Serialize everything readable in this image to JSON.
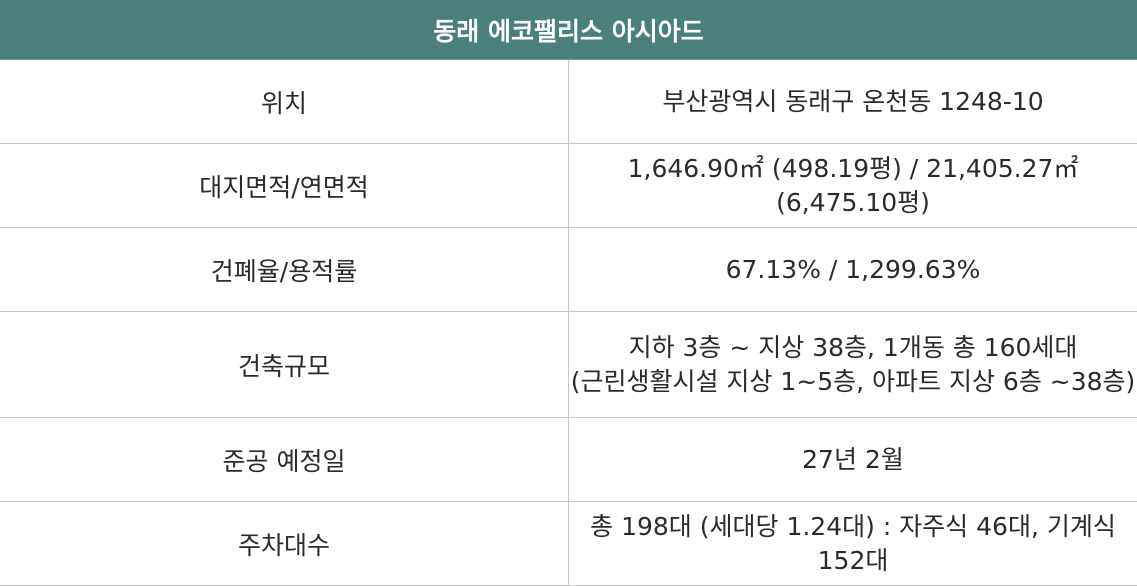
{
  "title": "동래 에코팰리스 아시아드",
  "rows": [
    {
      "label": "위치",
      "value": [
        "부산광역시 동래구 온천동 1248-10"
      ]
    },
    {
      "label": "대지면적/연면적",
      "value": [
        "1,646.90㎡ (498.19평) / 21,405.27㎡(6,475.10평)"
      ]
    },
    {
      "label": "건폐율/용적률",
      "value": [
        "67.13% / 1,299.63%"
      ]
    },
    {
      "label": "건축규모",
      "value": [
        "지하 3층 ~ 지상 38층, 1개동 총 160세대",
        "(근린생활시설 지상 1~5층, 아파트 지상 6층 ~38층)"
      ]
    },
    {
      "label": "준공 예정일",
      "value": [
        "27년 2월"
      ]
    },
    {
      "label": "주차대수",
      "value": [
        "총 198대 (세대당 1.24대) : 자주식 46대, 기계식 152대"
      ]
    }
  ],
  "colors": {
    "header_background": "#4a7f7b",
    "header_text": "#ffffff",
    "border": "#c7c7c7"
  }
}
